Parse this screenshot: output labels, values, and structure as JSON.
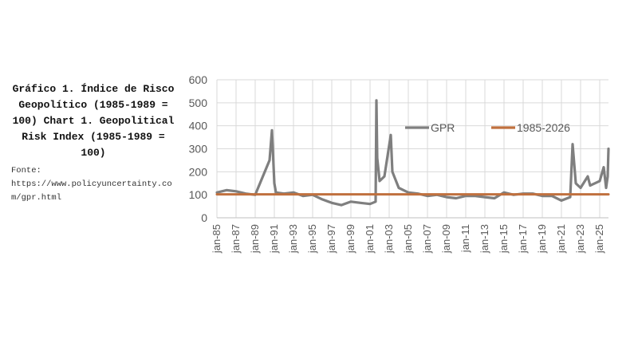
{
  "figure": {
    "title": "Gráfico 1. Índice de Risco Geopolítico (1985-1989 = 100) Chart 1. Geopolitical Risk Index (1985-1989 = 100)",
    "source_label": "Fonte:",
    "source_url": "https://www.policyuncertainty.com/gpr.html"
  },
  "chart_data": {
    "type": "line",
    "title": "",
    "xlabel": "",
    "ylabel": "",
    "ylim": [
      0,
      600
    ],
    "yticks": [
      "0",
      "100",
      "200",
      "300",
      "400",
      "500",
      "600"
    ],
    "xticks": [
      "jan-85",
      "jan-87",
      "jan-89",
      "jan-91",
      "jan-93",
      "jan-95",
      "jan-97",
      "jan-99",
      "jan-01",
      "jan-03",
      "jan-05",
      "jan-07",
      "jan-09",
      "jan-11",
      "jan-13",
      "jan-15",
      "jan-17",
      "jan-19",
      "jan-21",
      "jan-23",
      "jan-25"
    ],
    "grid": true,
    "legend_position": "top-right",
    "colors": {
      "gpr": "#7f7f7f",
      "baseline": "#c0703e",
      "grid": "#d9d9d9"
    },
    "series": [
      {
        "name": "GPR",
        "x": [
          "jan-85",
          "jan-86",
          "jan-87",
          "jan-88",
          "jan-89",
          "jul-90",
          "oct-90",
          "jan-91",
          "mar-91",
          "jan-92",
          "jan-93",
          "jan-94",
          "jan-95",
          "jan-96",
          "jan-97",
          "jan-98",
          "jan-99",
          "jan-00",
          "jan-01",
          "aug-01",
          "sep-01",
          "oct-01",
          "jan-02",
          "jul-02",
          "mar-03",
          "may-03",
          "jan-04",
          "jan-05",
          "jan-06",
          "jan-07",
          "jan-08",
          "jan-09",
          "jan-10",
          "jan-11",
          "jan-12",
          "jan-13",
          "jan-14",
          "jan-15",
          "jan-16",
          "jan-17",
          "jan-18",
          "jan-19",
          "jan-20",
          "jan-21",
          "dec-21",
          "mar-22",
          "jul-22",
          "jan-23",
          "oct-23",
          "jan-24",
          "jan-25",
          "jun-25",
          "sep-25",
          "nov-25",
          "dec-25"
        ],
        "values": [
          110,
          120,
          115,
          105,
          100,
          250,
          380,
          150,
          110,
          105,
          110,
          95,
          100,
          80,
          65,
          55,
          70,
          65,
          60,
          70,
          510,
          260,
          160,
          180,
          360,
          200,
          130,
          110,
          105,
          95,
          100,
          90,
          85,
          95,
          95,
          90,
          85,
          110,
          100,
          105,
          105,
          95,
          95,
          75,
          90,
          320,
          150,
          130,
          180,
          140,
          160,
          220,
          130,
          180,
          300
        ]
      },
      {
        "name": "1985-2026",
        "x": [
          "jan-85",
          "dec-25"
        ],
        "values": [
          102,
          102
        ]
      }
    ]
  }
}
